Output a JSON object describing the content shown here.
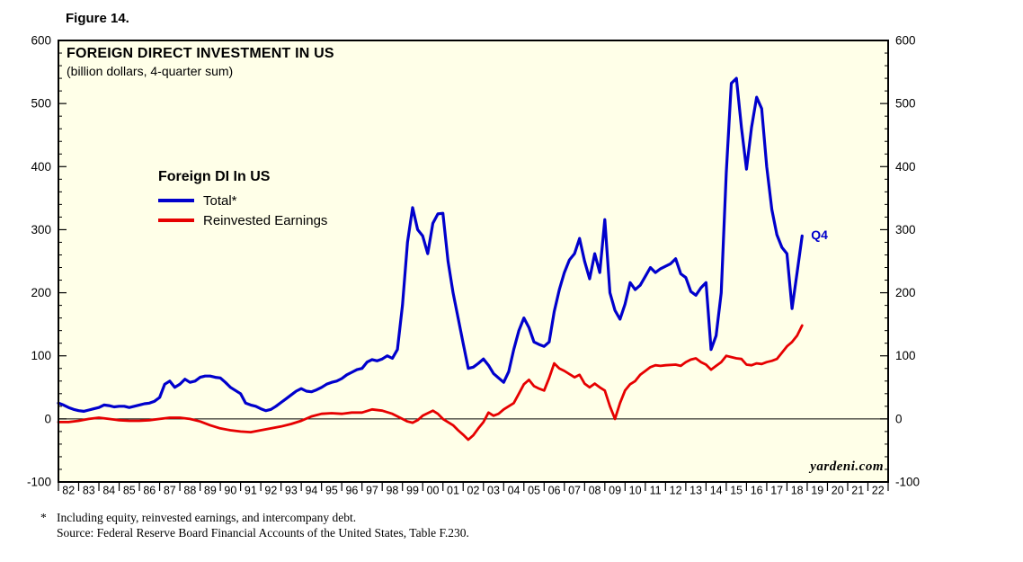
{
  "figure_label": "Figure 14.",
  "watermark": "yardeni.com",
  "footnotes": {
    "star": "*",
    "line1": "Including equity, reinvested earnings, and intercompany debt.",
    "line2": "Source: Federal Reserve Board Financial Accounts of the United States, Table F.230."
  },
  "chart_data": {
    "type": "line",
    "title": "FOREIGN DIRECT INVESTMENT IN US",
    "subtitle": "(billion dollars, 4-quarter sum)",
    "legend_title": "Foreign DI In US",
    "legend_position": "upper-left-inside",
    "grid": false,
    "plot_background": "#FFFFE8",
    "frame_color": "#000000",
    "zero_line": 0,
    "x_domain": [
      1982,
      2023
    ],
    "ylim": [
      -100,
      600
    ],
    "y_ticks": [
      -100,
      0,
      100,
      200,
      300,
      400,
      500,
      600
    ],
    "y_minor_step": 20,
    "x_tick_labels": [
      "82",
      "83",
      "84",
      "85",
      "86",
      "87",
      "88",
      "89",
      "90",
      "91",
      "92",
      "93",
      "94",
      "95",
      "96",
      "97",
      "98",
      "99",
      "00",
      "01",
      "02",
      "03",
      "04",
      "05",
      "06",
      "07",
      "08",
      "09",
      "10",
      "11",
      "12",
      "13",
      "14",
      "15",
      "16",
      "17",
      "18",
      "19",
      "20",
      "21",
      "22"
    ],
    "xlabel": "",
    "ylabel": "",
    "annotations": [
      {
        "text": "Q4",
        "x": 2019.1,
        "y": 292,
        "color": "#0000CC"
      }
    ],
    "series": [
      {
        "name": "Total*",
        "color": "#0000CC",
        "width": 3.2,
        "points": [
          [
            1982.0,
            25
          ],
          [
            1982.25,
            22
          ],
          [
            1982.5,
            18
          ],
          [
            1982.75,
            15
          ],
          [
            1983.0,
            13
          ],
          [
            1983.25,
            12
          ],
          [
            1983.5,
            14
          ],
          [
            1983.75,
            16
          ],
          [
            1984.0,
            18
          ],
          [
            1984.25,
            22
          ],
          [
            1984.5,
            21
          ],
          [
            1984.75,
            19
          ],
          [
            1985.0,
            20
          ],
          [
            1985.25,
            20
          ],
          [
            1985.5,
            18
          ],
          [
            1985.75,
            20
          ],
          [
            1986.0,
            22
          ],
          [
            1986.25,
            24
          ],
          [
            1986.5,
            25
          ],
          [
            1986.75,
            28
          ],
          [
            1987.0,
            34
          ],
          [
            1987.25,
            55
          ],
          [
            1987.5,
            60
          ],
          [
            1987.75,
            50
          ],
          [
            1988.0,
            55
          ],
          [
            1988.25,
            63
          ],
          [
            1988.5,
            58
          ],
          [
            1988.75,
            60
          ],
          [
            1989.0,
            66
          ],
          [
            1989.25,
            68
          ],
          [
            1989.5,
            68
          ],
          [
            1989.75,
            66
          ],
          [
            1990.0,
            65
          ],
          [
            1990.25,
            58
          ],
          [
            1990.5,
            50
          ],
          [
            1990.75,
            45
          ],
          [
            1991.0,
            40
          ],
          [
            1991.25,
            25
          ],
          [
            1991.5,
            22
          ],
          [
            1991.75,
            20
          ],
          [
            1992.0,
            16
          ],
          [
            1992.25,
            13
          ],
          [
            1992.5,
            15
          ],
          [
            1992.75,
            20
          ],
          [
            1993.0,
            26
          ],
          [
            1993.25,
            32
          ],
          [
            1993.5,
            38
          ],
          [
            1993.75,
            44
          ],
          [
            1994.0,
            48
          ],
          [
            1994.25,
            44
          ],
          [
            1994.5,
            43
          ],
          [
            1994.75,
            46
          ],
          [
            1995.0,
            50
          ],
          [
            1995.25,
            55
          ],
          [
            1995.5,
            58
          ],
          [
            1995.75,
            60
          ],
          [
            1996.0,
            64
          ],
          [
            1996.25,
            70
          ],
          [
            1996.5,
            74
          ],
          [
            1996.75,
            78
          ],
          [
            1997.0,
            80
          ],
          [
            1997.25,
            90
          ],
          [
            1997.5,
            94
          ],
          [
            1997.75,
            92
          ],
          [
            1998.0,
            95
          ],
          [
            1998.25,
            100
          ],
          [
            1998.5,
            96
          ],
          [
            1998.75,
            110
          ],
          [
            1999.0,
            180
          ],
          [
            1999.25,
            280
          ],
          [
            1999.5,
            335
          ],
          [
            1999.75,
            300
          ],
          [
            2000.0,
            290
          ],
          [
            2000.25,
            262
          ],
          [
            2000.5,
            310
          ],
          [
            2000.75,
            325
          ],
          [
            2001.0,
            326
          ],
          [
            2001.25,
            250
          ],
          [
            2001.5,
            200
          ],
          [
            2001.75,
            160
          ],
          [
            2002.0,
            120
          ],
          [
            2002.25,
            80
          ],
          [
            2002.5,
            82
          ],
          [
            2002.75,
            88
          ],
          [
            2003.0,
            95
          ],
          [
            2003.25,
            85
          ],
          [
            2003.5,
            72
          ],
          [
            2003.75,
            65
          ],
          [
            2004.0,
            58
          ],
          [
            2004.25,
            75
          ],
          [
            2004.5,
            110
          ],
          [
            2004.75,
            140
          ],
          [
            2005.0,
            160
          ],
          [
            2005.25,
            145
          ],
          [
            2005.5,
            122
          ],
          [
            2005.75,
            118
          ],
          [
            2006.0,
            115
          ],
          [
            2006.25,
            122
          ],
          [
            2006.5,
            170
          ],
          [
            2006.75,
            205
          ],
          [
            2007.0,
            232
          ],
          [
            2007.25,
            252
          ],
          [
            2007.5,
            262
          ],
          [
            2007.75,
            286
          ],
          [
            2008.0,
            250
          ],
          [
            2008.25,
            222
          ],
          [
            2008.5,
            262
          ],
          [
            2008.75,
            232
          ],
          [
            2009.0,
            316
          ],
          [
            2009.25,
            200
          ],
          [
            2009.5,
            172
          ],
          [
            2009.75,
            158
          ],
          [
            2010.0,
            182
          ],
          [
            2010.25,
            216
          ],
          [
            2010.5,
            205
          ],
          [
            2010.75,
            212
          ],
          [
            2011.0,
            226
          ],
          [
            2011.25,
            240
          ],
          [
            2011.5,
            232
          ],
          [
            2011.75,
            238
          ],
          [
            2012.0,
            242
          ],
          [
            2012.25,
            246
          ],
          [
            2012.5,
            254
          ],
          [
            2012.75,
            230
          ],
          [
            2013.0,
            224
          ],
          [
            2013.25,
            202
          ],
          [
            2013.5,
            196
          ],
          [
            2013.75,
            208
          ],
          [
            2014.0,
            216
          ],
          [
            2014.25,
            110
          ],
          [
            2014.5,
            132
          ],
          [
            2014.75,
            200
          ],
          [
            2015.0,
            390
          ],
          [
            2015.25,
            532
          ],
          [
            2015.5,
            540
          ],
          [
            2015.75,
            462
          ],
          [
            2016.0,
            396
          ],
          [
            2016.25,
            462
          ],
          [
            2016.5,
            510
          ],
          [
            2016.75,
            492
          ],
          [
            2017.0,
            400
          ],
          [
            2017.25,
            332
          ],
          [
            2017.5,
            292
          ],
          [
            2017.75,
            272
          ],
          [
            2018.0,
            262
          ],
          [
            2018.25,
            175
          ],
          [
            2018.5,
            232
          ],
          [
            2018.75,
            290
          ]
        ]
      },
      {
        "name": "Reinvested Earnings",
        "color": "#E60000",
        "width": 2.8,
        "points": [
          [
            1982.0,
            -5
          ],
          [
            1982.5,
            -5
          ],
          [
            1983.0,
            -3
          ],
          [
            1983.5,
            0
          ],
          [
            1984.0,
            2
          ],
          [
            1984.5,
            0
          ],
          [
            1985.0,
            -2
          ],
          [
            1985.5,
            -3
          ],
          [
            1986.0,
            -3
          ],
          [
            1986.5,
            -2
          ],
          [
            1987.0,
            0
          ],
          [
            1987.5,
            2
          ],
          [
            1988.0,
            2
          ],
          [
            1988.5,
            0
          ],
          [
            1989.0,
            -4
          ],
          [
            1989.5,
            -10
          ],
          [
            1990.0,
            -15
          ],
          [
            1990.5,
            -18
          ],
          [
            1991.0,
            -20
          ],
          [
            1991.5,
            -21
          ],
          [
            1992.0,
            -18
          ],
          [
            1992.5,
            -15
          ],
          [
            1993.0,
            -12
          ],
          [
            1993.5,
            -8
          ],
          [
            1994.0,
            -3
          ],
          [
            1994.5,
            4
          ],
          [
            1995.0,
            8
          ],
          [
            1995.5,
            9
          ],
          [
            1996.0,
            8
          ],
          [
            1996.5,
            10
          ],
          [
            1997.0,
            10
          ],
          [
            1997.5,
            15
          ],
          [
            1998.0,
            13
          ],
          [
            1998.5,
            8
          ],
          [
            1999.0,
            0
          ],
          [
            1999.25,
            -4
          ],
          [
            1999.5,
            -6
          ],
          [
            1999.75,
            -2
          ],
          [
            2000.0,
            5
          ],
          [
            2000.5,
            13
          ],
          [
            2000.75,
            8
          ],
          [
            2001.0,
            0
          ],
          [
            2001.5,
            -10
          ],
          [
            2001.75,
            -18
          ],
          [
            2002.0,
            -25
          ],
          [
            2002.25,
            -33
          ],
          [
            2002.5,
            -26
          ],
          [
            2002.75,
            -15
          ],
          [
            2003.0,
            -5
          ],
          [
            2003.25,
            10
          ],
          [
            2003.5,
            5
          ],
          [
            2003.75,
            8
          ],
          [
            2004.0,
            15
          ],
          [
            2004.5,
            25
          ],
          [
            2004.75,
            40
          ],
          [
            2005.0,
            55
          ],
          [
            2005.25,
            62
          ],
          [
            2005.5,
            52
          ],
          [
            2005.75,
            48
          ],
          [
            2006.0,
            45
          ],
          [
            2006.25,
            65
          ],
          [
            2006.5,
            88
          ],
          [
            2006.75,
            80
          ],
          [
            2007.0,
            76
          ],
          [
            2007.5,
            66
          ],
          [
            2007.75,
            70
          ],
          [
            2008.0,
            56
          ],
          [
            2008.25,
            50
          ],
          [
            2008.5,
            56
          ],
          [
            2008.75,
            50
          ],
          [
            2009.0,
            45
          ],
          [
            2009.25,
            20
          ],
          [
            2009.5,
            0
          ],
          [
            2009.75,
            25
          ],
          [
            2010.0,
            45
          ],
          [
            2010.25,
            55
          ],
          [
            2010.5,
            60
          ],
          [
            2010.75,
            70
          ],
          [
            2011.0,
            76
          ],
          [
            2011.25,
            82
          ],
          [
            2011.5,
            85
          ],
          [
            2011.75,
            84
          ],
          [
            2012.0,
            85
          ],
          [
            2012.5,
            86
          ],
          [
            2012.75,
            84
          ],
          [
            2013.0,
            90
          ],
          [
            2013.25,
            94
          ],
          [
            2013.5,
            96
          ],
          [
            2013.75,
            90
          ],
          [
            2014.0,
            86
          ],
          [
            2014.25,
            78
          ],
          [
            2014.5,
            84
          ],
          [
            2014.75,
            90
          ],
          [
            2015.0,
            100
          ],
          [
            2015.25,
            98
          ],
          [
            2015.5,
            96
          ],
          [
            2015.75,
            95
          ],
          [
            2016.0,
            86
          ],
          [
            2016.25,
            85
          ],
          [
            2016.5,
            88
          ],
          [
            2016.75,
            87
          ],
          [
            2017.0,
            90
          ],
          [
            2017.25,
            92
          ],
          [
            2017.5,
            95
          ],
          [
            2017.75,
            105
          ],
          [
            2018.0,
            115
          ],
          [
            2018.25,
            122
          ],
          [
            2018.5,
            132
          ],
          [
            2018.75,
            148
          ]
        ]
      }
    ]
  }
}
